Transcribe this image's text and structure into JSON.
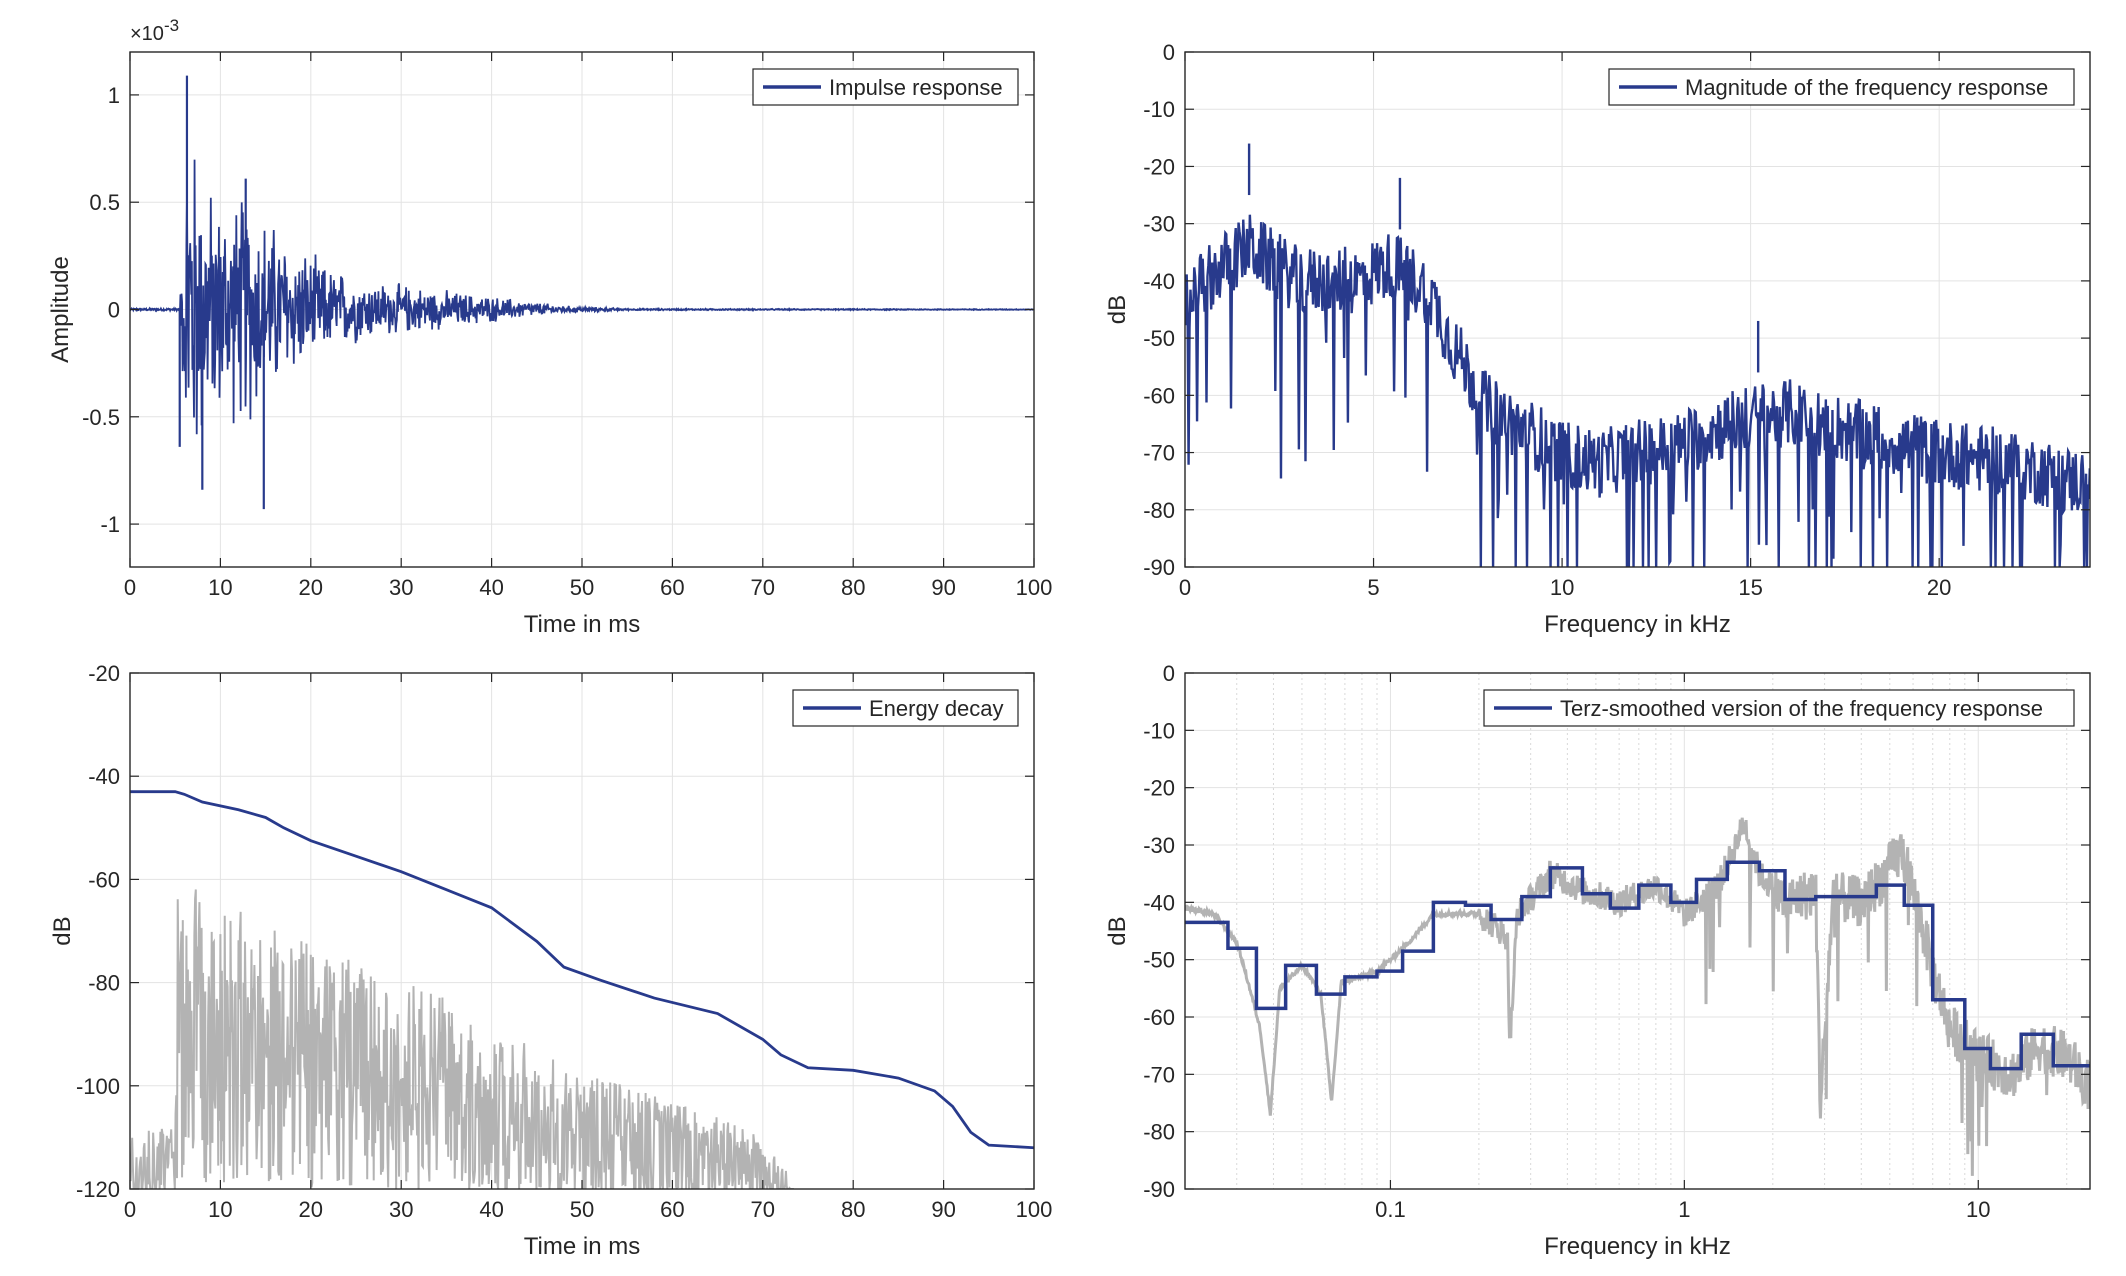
{
  "chart_data": [
    {
      "type": "line",
      "id": "impulse",
      "xlabel": "Time in ms",
      "ylabel": "Amplitude",
      "exponent_label": "×10",
      "exponent_power": "-3",
      "xlim": [
        0,
        100
      ],
      "ylim": [
        -1.2,
        1.2
      ],
      "xticks": [
        0,
        10,
        20,
        30,
        40,
        50,
        60,
        70,
        80,
        90,
        100
      ],
      "xtick_labels": [
        "0",
        "10",
        "20",
        "30",
        "40",
        "50",
        "60",
        "70",
        "80",
        "90",
        "100"
      ],
      "yticks": [
        -1,
        -0.5,
        0,
        0.5,
        1
      ],
      "ytick_labels": [
        "-1",
        "-0.5",
        "0",
        "0.5",
        "1"
      ],
      "grid": true,
      "legend_position": "top-right",
      "series": [
        {
          "name": "Impulse response",
          "color": "#283a8c",
          "envelope_points": [
            [
              5.5,
              0.02
            ],
            [
              6.5,
              1.09
            ],
            [
              8,
              0.7
            ],
            [
              10,
              0.55
            ],
            [
              13,
              0.62
            ],
            [
              15,
              0.5
            ],
            [
              18,
              0.35
            ],
            [
              22,
              0.22
            ],
            [
              27,
              0.15
            ],
            [
              35,
              0.1
            ],
            [
              43,
              0.05
            ],
            [
              48,
              0.02
            ],
            [
              55,
              0.004
            ],
            [
              100,
              0.002
            ]
          ],
          "notable_peaks": [
            [
              6.3,
              1.09
            ],
            [
              5.5,
              -0.64
            ],
            [
              8,
              -0.84
            ],
            [
              14.8,
              -0.93
            ],
            [
              12.8,
              0.61
            ]
          ]
        }
      ]
    },
    {
      "type": "line",
      "id": "magnitude",
      "xlabel": "Frequency in kHz",
      "ylabel": "dB",
      "xlim": [
        0,
        24
      ],
      "ylim": [
        -90,
        0
      ],
      "xticks": [
        0,
        5,
        10,
        15,
        20
      ],
      "xtick_labels": [
        "0",
        "5",
        "10",
        "15",
        "20"
      ],
      "yticks": [
        0,
        -10,
        -20,
        -30,
        -40,
        -50,
        -60,
        -70,
        -80,
        -90
      ],
      "ytick_labels": [
        "0",
        "-10",
        "-20",
        "-30",
        "-40",
        "-50",
        "-60",
        "-70",
        "-80",
        "-90"
      ],
      "grid": true,
      "legend_position": "top-right",
      "series": [
        {
          "name": "Magnitude of the frequency response",
          "color": "#283a8c",
          "trend_points": [
            [
              0,
              -44
            ],
            [
              0.5,
              -40
            ],
            [
              1.7,
              -34
            ],
            [
              3,
              -40
            ],
            [
              4.5,
              -40
            ],
            [
              5.5,
              -37
            ],
            [
              6.5,
              -42
            ],
            [
              7,
              -50
            ],
            [
              8,
              -62
            ],
            [
              9,
              -66
            ],
            [
              10,
              -70
            ],
            [
              11,
              -72
            ],
            [
              12,
              -70
            ],
            [
              13,
              -69
            ],
            [
              14,
              -66
            ],
            [
              15,
              -64
            ],
            [
              16,
              -63
            ],
            [
              17,
              -65
            ],
            [
              18,
              -67
            ],
            [
              20,
              -70
            ],
            [
              22,
              -72
            ],
            [
              23.5,
              -75
            ]
          ],
          "notable_peaks": [
            [
              1.7,
              -25
            ],
            [
              5.7,
              -31
            ],
            [
              15.2,
              -56
            ]
          ]
        }
      ]
    },
    {
      "type": "line",
      "id": "energy",
      "xlabel": "Time in ms",
      "ylabel": "dB",
      "xlim": [
        0,
        100
      ],
      "ylim": [
        -120,
        -20
      ],
      "xticks": [
        0,
        10,
        20,
        30,
        40,
        50,
        60,
        70,
        80,
        90,
        100
      ],
      "xtick_labels": [
        "0",
        "10",
        "20",
        "30",
        "40",
        "50",
        "60",
        "70",
        "80",
        "90",
        "100"
      ],
      "yticks": [
        -20,
        -40,
        -60,
        -80,
        -100,
        -120
      ],
      "ytick_labels": [
        "-20",
        "-40",
        "-60",
        "-80",
        "-100",
        "-120"
      ],
      "grid": true,
      "legend_position": "top-right",
      "series": [
        {
          "name": "Energy decay",
          "color": "#283a8c",
          "points": [
            [
              0,
              -43
            ],
            [
              5,
              -43
            ],
            [
              6,
              -43.5
            ],
            [
              8,
              -45
            ],
            [
              12,
              -46.5
            ],
            [
              15,
              -48
            ],
            [
              17,
              -50
            ],
            [
              20,
              -52.5
            ],
            [
              25,
              -55.5
            ],
            [
              30,
              -58.5
            ],
            [
              35,
              -62
            ],
            [
              40,
              -65.5
            ],
            [
              45,
              -72
            ],
            [
              48,
              -77
            ],
            [
              52,
              -79.5
            ],
            [
              58,
              -83
            ],
            [
              65,
              -86
            ],
            [
              70,
              -91
            ],
            [
              72,
              -94
            ],
            [
              75,
              -96.5
            ],
            [
              80,
              -97
            ],
            [
              85,
              -98.5
            ],
            [
              89,
              -101
            ],
            [
              91,
              -104
            ],
            [
              93,
              -109
            ],
            [
              95,
              -111.5
            ],
            [
              100,
              -112
            ]
          ]
        },
        {
          "name": "",
          "color": "#b3b3b3",
          "envelope_top": [
            [
              0,
              -109
            ],
            [
              5,
              -108
            ],
            [
              5.2,
              -61
            ],
            [
              8,
              -62
            ],
            [
              15,
              -69
            ],
            [
              25,
              -76
            ],
            [
              35,
              -83
            ],
            [
              45,
              -93
            ],
            [
              55,
              -100
            ],
            [
              65,
              -106
            ],
            [
              70,
              -110
            ],
            [
              73,
              -117
            ]
          ],
          "start_ms": 0,
          "end_ms": 73.5
        }
      ]
    },
    {
      "type": "line",
      "id": "terz",
      "xlabel": "Frequency in kHz",
      "ylabel": "dB",
      "xscale": "log",
      "xlim": [
        0.02,
        24
      ],
      "ylim": [
        -90,
        0
      ],
      "xticks": [
        0.1,
        1,
        10
      ],
      "xtick_labels": [
        "0.1",
        "1",
        "10"
      ],
      "yticks": [
        0,
        -10,
        -20,
        -30,
        -40,
        -50,
        -60,
        -70,
        -80,
        -90
      ],
      "ytick_labels": [
        "0",
        "-10",
        "-20",
        "-30",
        "-40",
        "-50",
        "-60",
        "-70",
        "-80",
        "-90"
      ],
      "grid": true,
      "minor_grid": true,
      "legend_position": "top-right",
      "series": [
        {
          "name": "Terz-smoothed version of the frequency response",
          "color": "#283a8c",
          "steps": [
            [
              0.02,
              -43.5
            ],
            [
              0.028,
              -48
            ],
            [
              0.035,
              -58.5
            ],
            [
              0.044,
              -51
            ],
            [
              0.056,
              -56
            ],
            [
              0.07,
              -53
            ],
            [
              0.09,
              -52
            ],
            [
              0.11,
              -48.5
            ],
            [
              0.14,
              -40
            ],
            [
              0.18,
              -40.5
            ],
            [
              0.22,
              -43
            ],
            [
              0.28,
              -39
            ],
            [
              0.35,
              -34
            ],
            [
              0.45,
              -38.5
            ],
            [
              0.56,
              -41
            ],
            [
              0.7,
              -37
            ],
            [
              0.9,
              -40
            ],
            [
              1.1,
              -36
            ],
            [
              1.4,
              -33
            ],
            [
              1.8,
              -34.5
            ],
            [
              2.2,
              -39.5
            ],
            [
              2.8,
              -39
            ],
            [
              3.5,
              -39
            ],
            [
              4.5,
              -37
            ],
            [
              5.6,
              -40.5
            ],
            [
              7,
              -57
            ],
            [
              9,
              -65.5
            ],
            [
              11,
              -69
            ],
            [
              14,
              -63
            ],
            [
              18,
              -68.5
            ],
            [
              24,
              -68.5
            ]
          ]
        },
        {
          "name": "",
          "color": "#b3b3b3",
          "trend_points": [
            [
              0.02,
              -41
            ],
            [
              0.025,
              -42
            ],
            [
              0.03,
              -47
            ],
            [
              0.036,
              -62
            ],
            [
              0.039,
              -77
            ],
            [
              0.042,
              -55
            ],
            [
              0.05,
              -51
            ],
            [
              0.058,
              -56
            ],
            [
              0.063,
              -75
            ],
            [
              0.068,
              -54
            ],
            [
              0.09,
              -52
            ],
            [
              0.11,
              -48
            ],
            [
              0.14,
              -42
            ],
            [
              0.2,
              -42
            ],
            [
              0.25,
              -46
            ],
            [
              0.255,
              -65
            ],
            [
              0.27,
              -42
            ],
            [
              0.35,
              -35
            ],
            [
              0.45,
              -38
            ],
            [
              0.6,
              -40
            ],
            [
              0.8,
              -37
            ],
            [
              1.0,
              -42
            ],
            [
              1.3,
              -37
            ],
            [
              1.6,
              -26
            ],
            [
              1.8,
              -35
            ],
            [
              2.2,
              -40
            ],
            [
              2.8,
              -38
            ],
            [
              2.9,
              -75
            ],
            [
              3.2,
              -39
            ],
            [
              4,
              -40
            ],
            [
              5.5,
              -31
            ],
            [
              6.5,
              -45
            ],
            [
              7,
              -52
            ],
            [
              8,
              -62
            ],
            [
              10,
              -67
            ],
            [
              13,
              -70
            ],
            [
              16,
              -65
            ],
            [
              20,
              -67
            ],
            [
              24,
              -72
            ]
          ]
        }
      ]
    }
  ]
}
